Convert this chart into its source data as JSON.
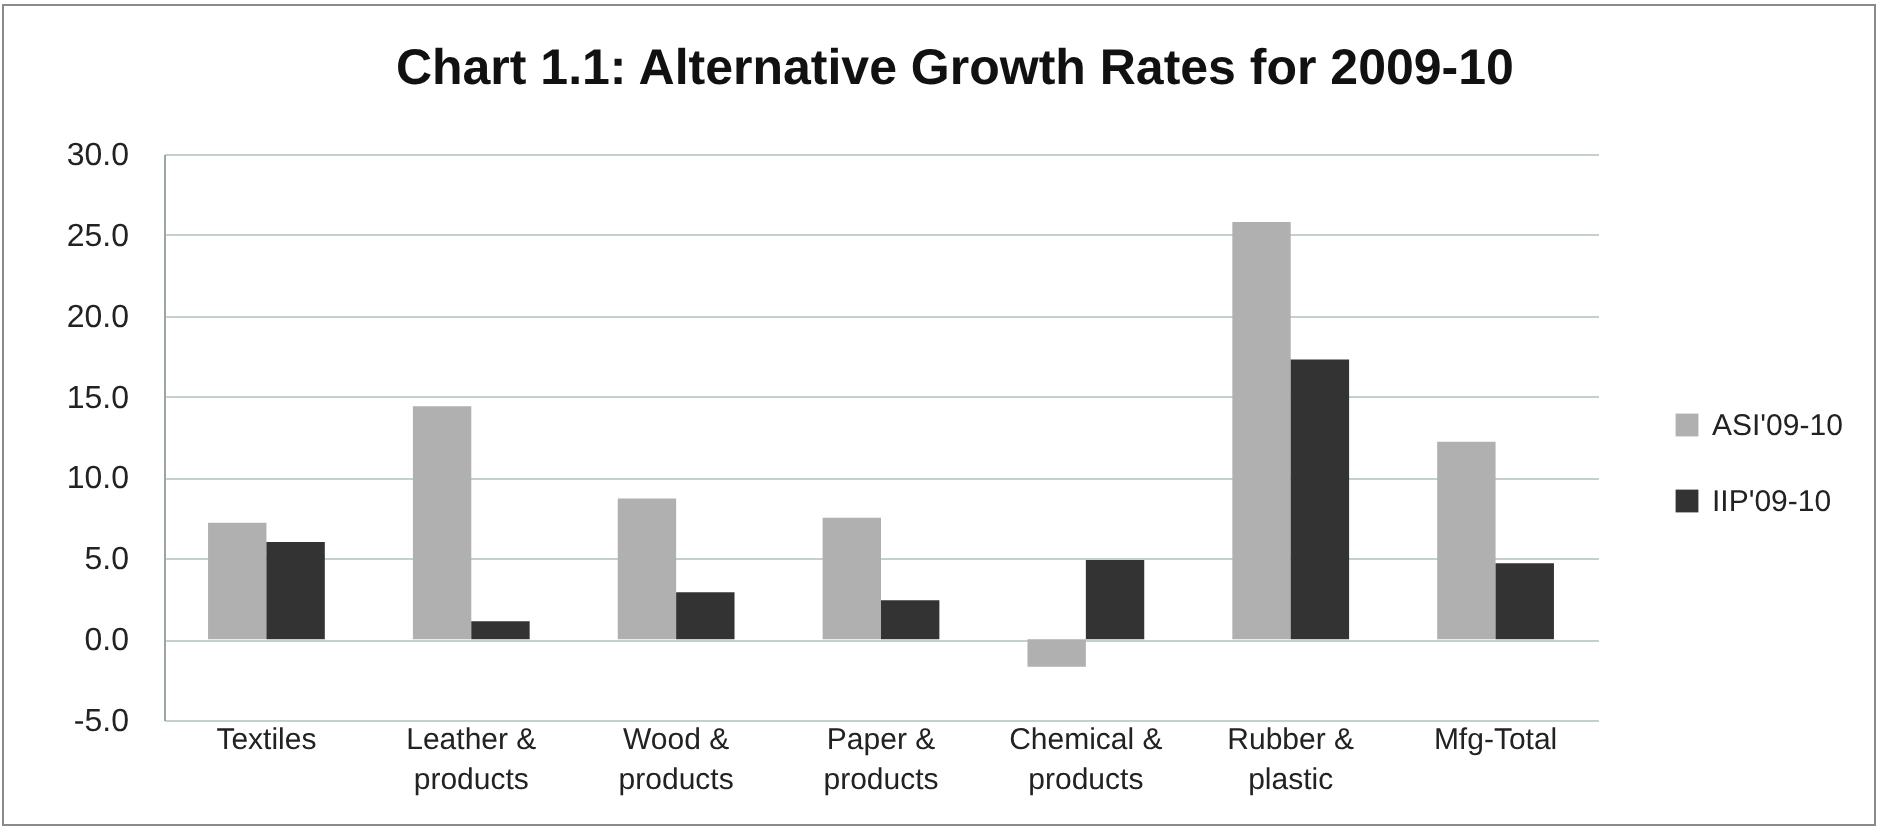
{
  "chart_data": {
    "type": "bar",
    "title": "Chart 1.1: Alternative Growth Rates for 2009-10",
    "categories": [
      "Textiles",
      "Leather & products",
      "Wood & products",
      "Paper & products",
      "Chemical & products",
      "Rubber & plastic",
      "Mfg-Total"
    ],
    "series": [
      {
        "name": "ASI'09-10",
        "color": "#b0b0b0",
        "values": [
          7.2,
          14.4,
          8.7,
          7.5,
          -1.7,
          25.8,
          12.2
        ]
      },
      {
        "name": "IIP'09-10",
        "color": "#333333",
        "values": [
          6.0,
          1.1,
          2.9,
          2.4,
          4.9,
          17.3,
          4.7
        ]
      }
    ],
    "ylim": [
      -5,
      30
    ],
    "yticks": [
      {
        "value": -5,
        "label": "-5.0"
      },
      {
        "value": 0,
        "label": "0.0"
      },
      {
        "value": 5,
        "label": "5.0"
      },
      {
        "value": 10,
        "label": "10.0"
      },
      {
        "value": 15,
        "label": "15.0"
      },
      {
        "value": 20,
        "label": "20.0"
      },
      {
        "value": 25,
        "label": "25.0"
      },
      {
        "value": 30,
        "label": "30.0"
      }
    ],
    "grid": "y",
    "legend": "right"
  }
}
